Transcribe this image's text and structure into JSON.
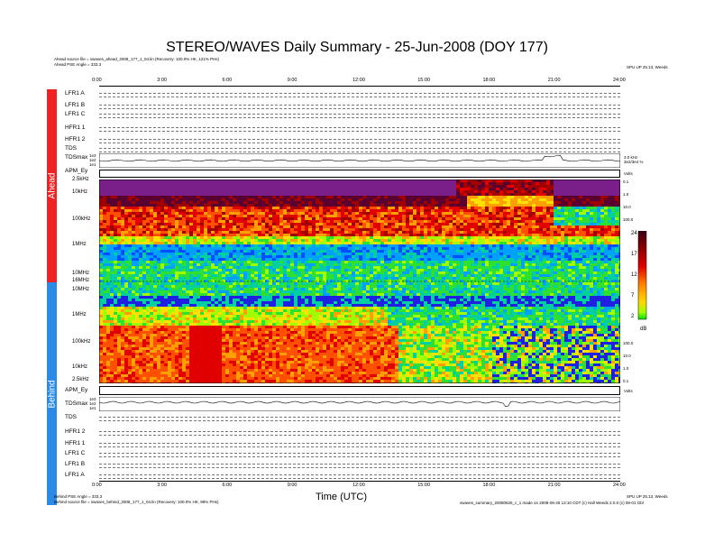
{
  "header": {
    "title": "STEREO/WAVES Daily Summary - 25-Jun-2008 (DOY 177)",
    "ahead_source": "Ahead source file = swaves_ahead_2008_177_1_04.lin (Recovery: 100.0% HK, 121% PHs)",
    "ahead_angle": "Ahead PSE Angle = 333.3",
    "top_right": "SPU UP 25.13, Weeds"
  },
  "footer": {
    "behind_angle": "Behind PSE Angle = 333.3",
    "behind_source": "Behind source file = swaves_behind_2008_177_1_04.lin (Recovery: 100.0% HK, 99% PHs)",
    "bottom_right": "SPU UP 25.13, Weeds",
    "build_info": "swaves_summary_20080625_c_1 made on 2008-06-25 13:10 CDT (c) Hall Weeds 2.0.0 (c) 08-01 Gbl",
    "xlabel": "Time (UTC)"
  },
  "sides": {
    "ahead": "Ahead",
    "behind": "Behind"
  },
  "colorbar": {
    "ticks": [
      "24",
      "17",
      "12",
      "7",
      "2"
    ],
    "unit": "dB",
    "colors": [
      "#3a0017",
      "#8b0000",
      "#e00000",
      "#ff7f00",
      "#ffd700",
      "#a0ff00",
      "#00e000"
    ]
  },
  "chart_data": {
    "type": "heatmap",
    "title": "STEREO/WAVES Daily Summary - 25-Jun-2008 (DOY 177)",
    "xlabel": "Time (UTC)",
    "x_ticks": [
      "0:00",
      "3:00",
      "6:00",
      "9:00",
      "12:00",
      "15:00",
      "18:00",
      "21:00",
      "24:00"
    ],
    "xlim": [
      0,
      24
    ],
    "ahead_rows": [
      "LFR1 A",
      "LFR1 B",
      "LFR1 C",
      "HFR1 1",
      "HFR1 2",
      "TDS",
      "TDSmax",
      "APM_Ey"
    ],
    "behind_rows": [
      "APM_Ey",
      "TDSmax",
      "TDS",
      "HFR1 2",
      "HFR1 1",
      "LFR1 C",
      "LFR1 B",
      "LFR1 A"
    ],
    "ahead_freq_ticks": [
      "2.5kHz",
      "10kHz",
      "100kHz",
      "1MHz",
      "10MHz",
      "16MHz"
    ],
    "behind_freq_ticks": [
      "10MHz",
      "1MHz",
      "100kHz",
      "10kHz",
      "2.5kHz"
    ],
    "right_tick_ahead": [
      "0.1",
      "1.0",
      "10.0",
      "100.0"
    ],
    "right_tick_behind": [
      "100.0",
      "10.0",
      "1.0",
      "0.1"
    ],
    "tds_ahead_ticks": [
      "1e3",
      "1e2",
      "1e1"
    ],
    "tds_behind_ticks": [
      "1e3",
      "1e2",
      "1e1"
    ],
    "apm_unit": "Volts",
    "tds_right": [
      "3.0 kHz",
      "3e2/3e4 %"
    ],
    "colorbar_range": [
      2,
      24
    ],
    "colorbar_unit": "dB"
  }
}
